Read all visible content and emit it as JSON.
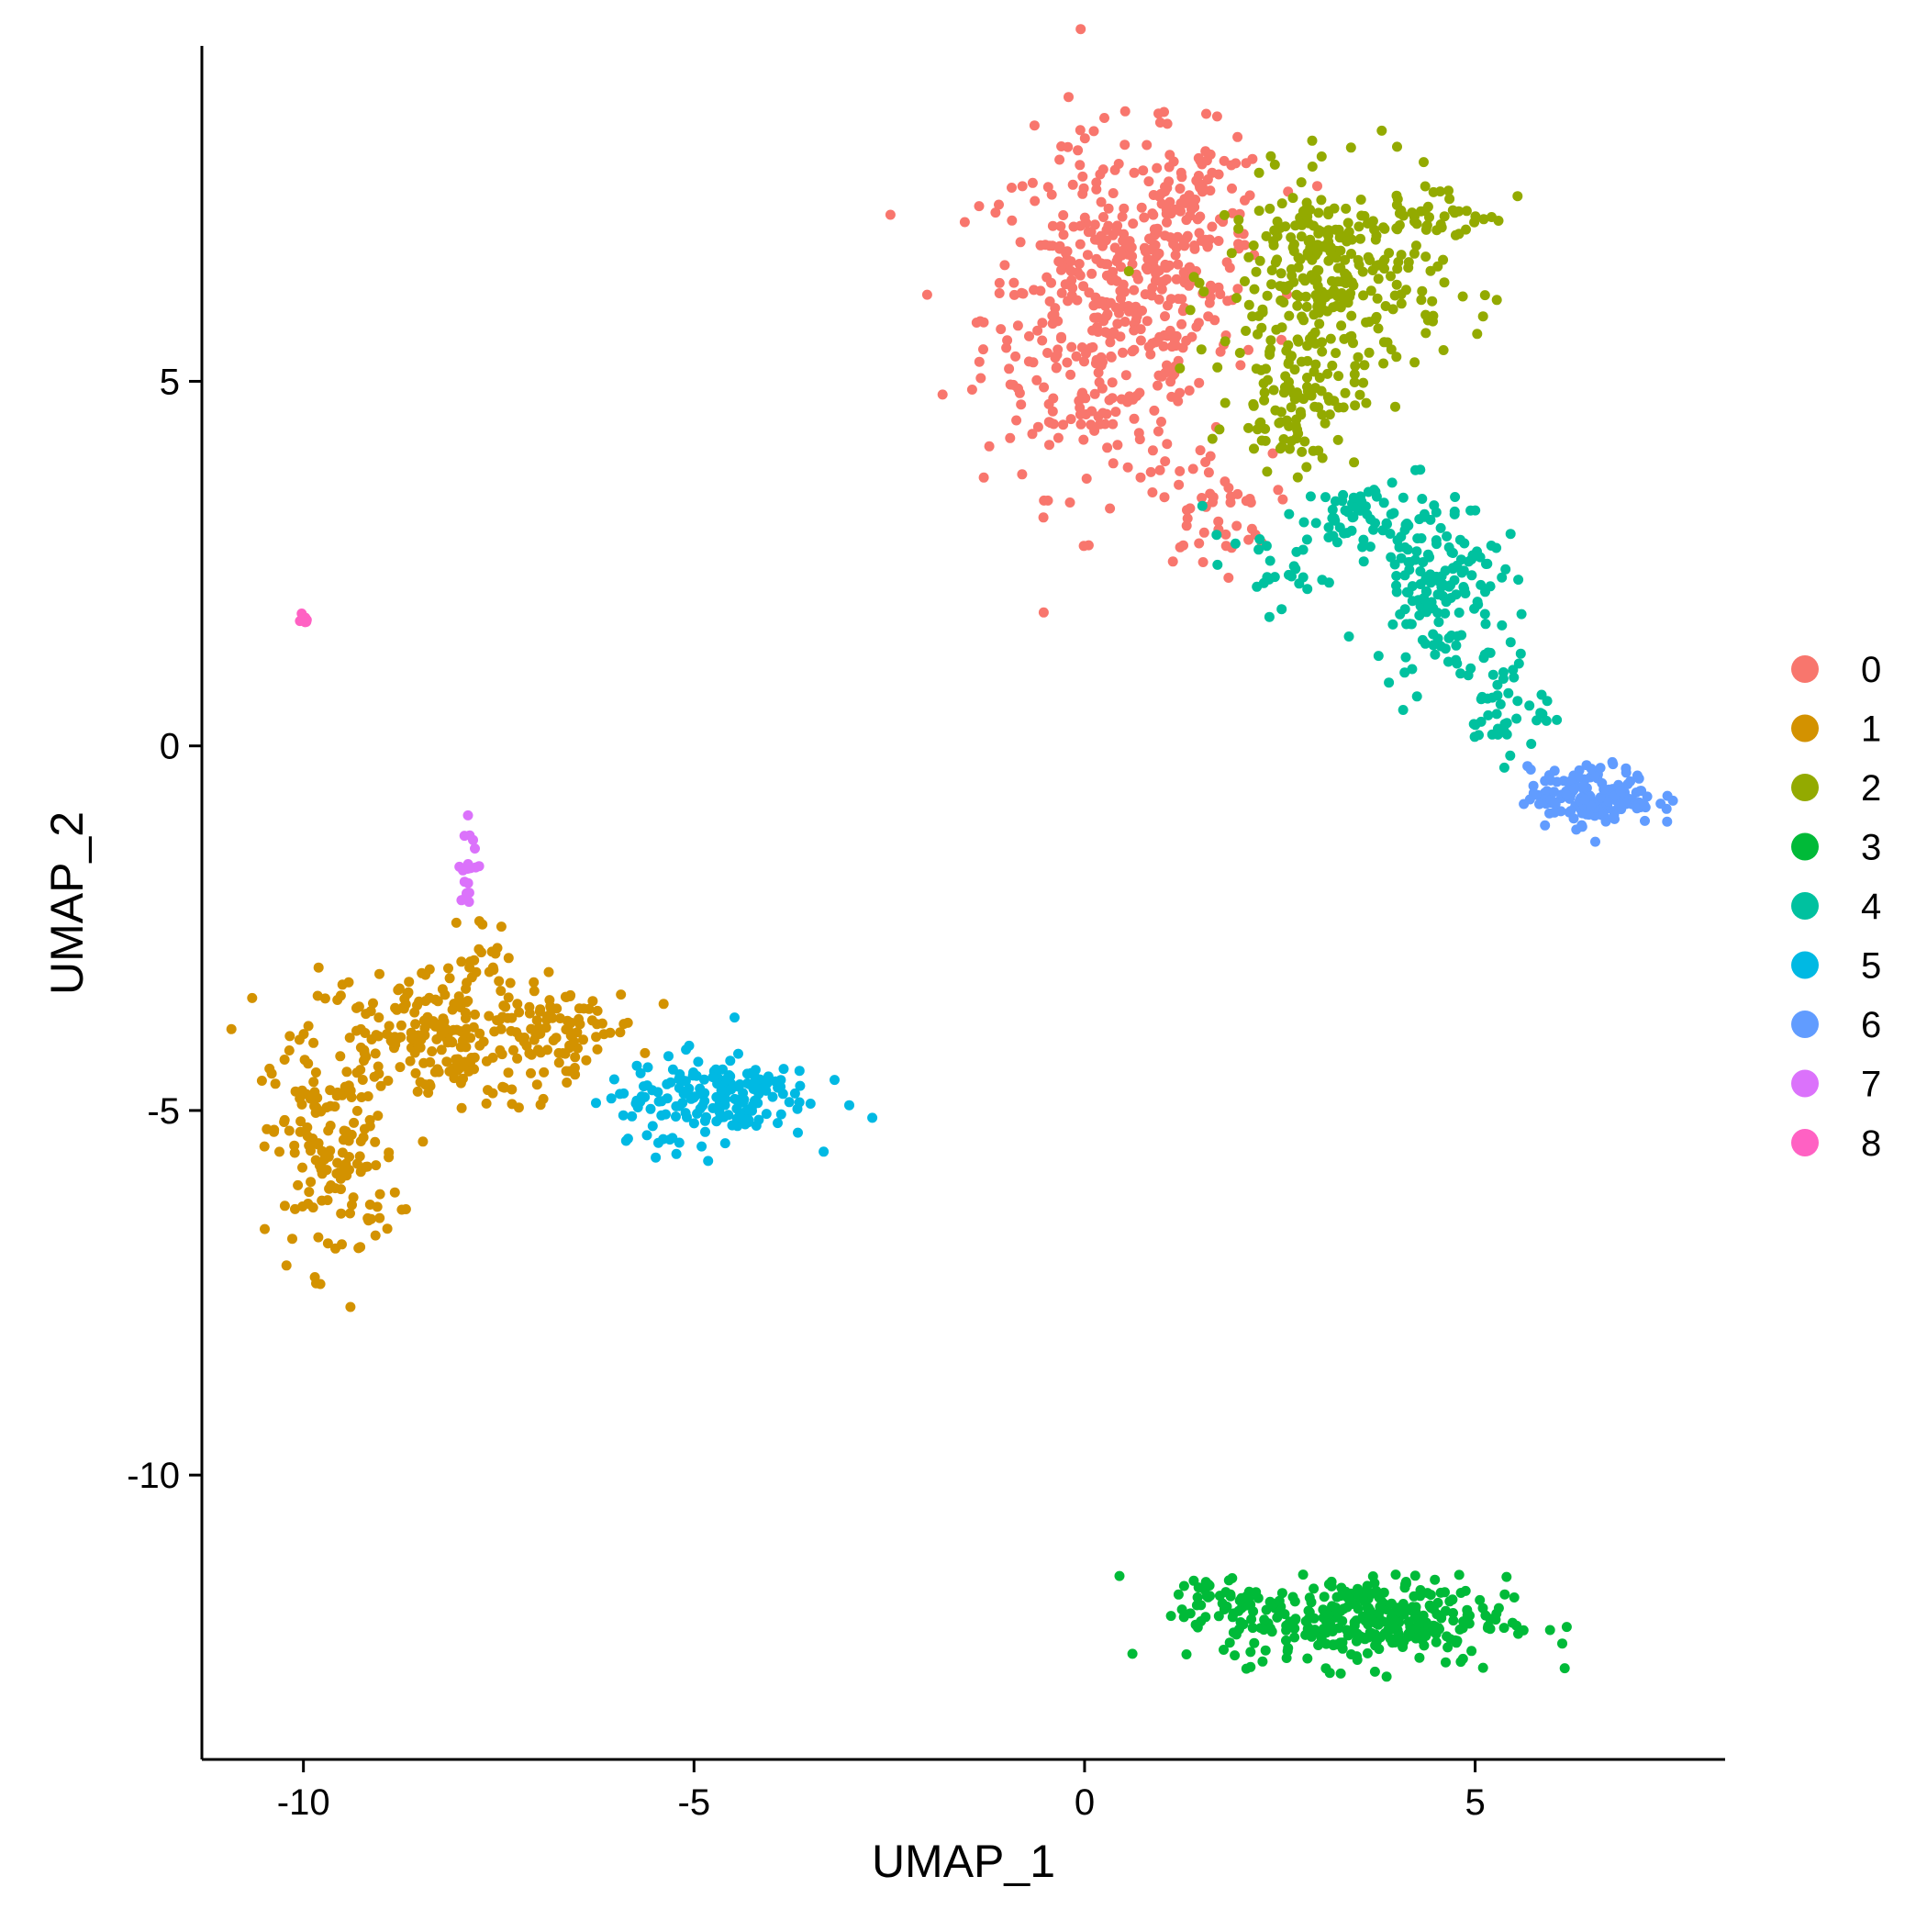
{
  "chart_data": {
    "type": "scatter",
    "title": "",
    "xlabel": "UMAP_1",
    "ylabel": "UMAP_2",
    "xlim": [
      -11.3,
      8.2
    ],
    "ylim": [
      -13.9,
      9.6
    ],
    "x_ticks": [
      -10,
      -5,
      0,
      5
    ],
    "y_ticks": [
      5,
      0,
      -5,
      -10
    ],
    "x_tick_labels": [
      "-10",
      "-5",
      "0",
      "5"
    ],
    "y_tick_labels": [
      "5",
      "0",
      "-5",
      "-10"
    ],
    "grid": false,
    "legend_position": "right",
    "series": [
      {
        "name": "0",
        "color": "#F8766D",
        "clusters": [
          {
            "cx": 0.3,
            "cy": 5.9,
            "sx": 0.8,
            "sy": 1.2,
            "n": 420
          },
          {
            "cx": 1.4,
            "cy": 7.2,
            "sx": 0.5,
            "sy": 0.6,
            "n": 120
          },
          {
            "cx": 1.6,
            "cy": 3.2,
            "sx": 0.4,
            "sy": 0.4,
            "n": 40
          }
        ]
      },
      {
        "name": "1",
        "color": "#D39200",
        "clusters": [
          {
            "cx": -8.3,
            "cy": -4.0,
            "sx": 0.9,
            "sy": 0.5,
            "n": 230
          },
          {
            "cx": -9.6,
            "cy": -5.6,
            "sx": 0.4,
            "sy": 0.8,
            "n": 150
          },
          {
            "cx": -6.7,
            "cy": -3.9,
            "sx": 0.5,
            "sy": 0.3,
            "n": 60
          },
          {
            "cx": -7.7,
            "cy": -2.9,
            "sx": 0.2,
            "sy": 0.3,
            "n": 20
          }
        ]
      },
      {
        "name": "2",
        "color": "#93AA00",
        "clusters": [
          {
            "cx": 3.2,
            "cy": 6.4,
            "sx": 0.7,
            "sy": 0.7,
            "n": 300
          },
          {
            "cx": 2.7,
            "cy": 4.8,
            "sx": 0.4,
            "sy": 0.5,
            "n": 100
          },
          {
            "cx": 4.7,
            "cy": 7.3,
            "sx": 0.4,
            "sy": 0.2,
            "n": 30
          }
        ]
      },
      {
        "name": "3",
        "color": "#00BA38",
        "clusters": [
          {
            "cx": 3.6,
            "cy": -12.0,
            "sx": 0.9,
            "sy": 0.3,
            "n": 330
          },
          {
            "cx": 1.8,
            "cy": -11.7,
            "sx": 0.4,
            "sy": 0.15,
            "n": 40
          }
        ]
      },
      {
        "name": "4",
        "color": "#00C19F",
        "clusters": [
          {
            "cx": 4.5,
            "cy": 2.3,
            "sx": 0.4,
            "sy": 0.6,
            "n": 150
          },
          {
            "cx": 3.6,
            "cy": 3.1,
            "sx": 0.4,
            "sy": 0.25,
            "n": 60
          },
          {
            "cx": 5.3,
            "cy": 0.6,
            "sx": 0.3,
            "sy": 0.4,
            "n": 50
          },
          {
            "cx": 2.3,
            "cy": 2.4,
            "sx": 0.4,
            "sy": 0.25,
            "n": 25
          }
        ]
      },
      {
        "name": "5",
        "color": "#00B9E3",
        "clusters": [
          {
            "cx": -4.7,
            "cy": -4.8,
            "sx": 0.6,
            "sy": 0.3,
            "n": 160
          },
          {
            "cx": -5.7,
            "cy": -5.1,
            "sx": 0.3,
            "sy": 0.3,
            "n": 20
          }
        ]
      },
      {
        "name": "6",
        "color": "#619CFF",
        "clusters": [
          {
            "cx": 6.5,
            "cy": -0.7,
            "sx": 0.4,
            "sy": 0.2,
            "n": 170
          }
        ]
      },
      {
        "name": "7",
        "color": "#DB72FB",
        "clusters": [
          {
            "cx": -7.85,
            "cy": -1.6,
            "sx": 0.08,
            "sy": 0.3,
            "n": 20
          }
        ]
      },
      {
        "name": "8",
        "color": "#FF61C3",
        "clusters": [
          {
            "cx": -10.0,
            "cy": 1.75,
            "sx": 0.05,
            "sy": 0.04,
            "n": 8
          }
        ]
      }
    ]
  }
}
